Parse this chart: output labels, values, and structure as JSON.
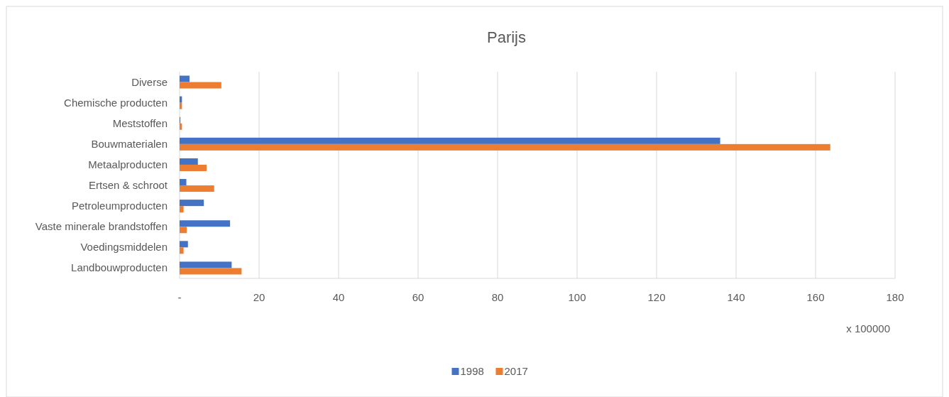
{
  "chart_data": {
    "type": "bar",
    "orientation": "horizontal",
    "title": "Parijs",
    "xlabel": "x 100000",
    "categories": [
      "Diverse",
      "Chemische producten",
      "Meststoffen",
      "Bouwmaterialen",
      "Metaalproducten",
      "Ertsen & schroot",
      "Petroleumproducten",
      "Vaste minerale brandstoffen",
      "Voedingsmiddelen",
      "Landbouwproducten"
    ],
    "series": [
      {
        "name": "1998",
        "color": "#4472c4",
        "values": [
          2.5,
          0.6,
          0.2,
          136,
          4.6,
          1.7,
          6.1,
          12.7,
          2.1,
          13.1
        ]
      },
      {
        "name": "2017",
        "color": "#ed7d31",
        "values": [
          10.5,
          0.6,
          0.6,
          163.7,
          6.8,
          8.7,
          1.0,
          1.8,
          1.0,
          15.6
        ]
      }
    ],
    "xlim": [
      0,
      180
    ],
    "xticks": [
      {
        "value": 0,
        "label": "-"
      },
      20,
      40,
      60,
      80,
      100,
      120,
      140,
      160,
      180
    ],
    "grid": "x",
    "legend": "bottom"
  }
}
